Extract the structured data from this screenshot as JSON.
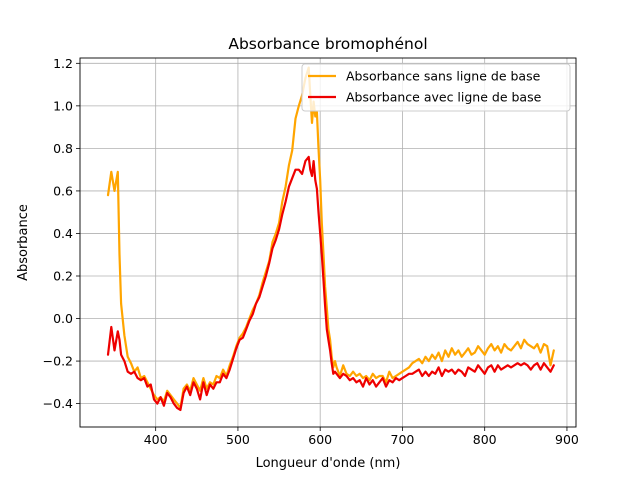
{
  "chart_data": {
    "type": "line",
    "title": "Absorbance bromophénol",
    "xlabel": "Longueur d'onde (nm)",
    "ylabel": "Absorbance",
    "xlim": [
      308,
      911
    ],
    "ylim": [
      -0.51,
      1.225
    ],
    "xticks": [
      400,
      500,
      600,
      700,
      800,
      900
    ],
    "yticks": [
      -0.4,
      -0.2,
      0.0,
      0.2,
      0.4,
      0.6,
      0.8,
      1.0,
      1.2
    ],
    "xtick_labels": [
      "400",
      "500",
      "600",
      "700",
      "800",
      "900"
    ],
    "ytick_labels": [
      "−0.4",
      "−0.2",
      "0.0",
      "0.2",
      "0.4",
      "0.6",
      "0.8",
      "1.0",
      "1.2"
    ],
    "grid": true,
    "legend_position": "top-right",
    "series": [
      {
        "name": "Absorbance sans ligne de base",
        "color": "#ffa500",
        "x": [
          342,
          346,
          350,
          354,
          356,
          358,
          362,
          366,
          370,
          374,
          378,
          382,
          386,
          390,
          394,
          398,
          402,
          406,
          410,
          414,
          418,
          422,
          426,
          430,
          434,
          438,
          442,
          446,
          450,
          454,
          458,
          462,
          466,
          470,
          474,
          478,
          482,
          486,
          490,
          494,
          498,
          502,
          506,
          510,
          514,
          518,
          522,
          526,
          530,
          534,
          538,
          542,
          546,
          550,
          554,
          558,
          562,
          566,
          570,
          574,
          578,
          582,
          586,
          588,
          590,
          592,
          594,
          596,
          598,
          600,
          602,
          604,
          606,
          608,
          610,
          612,
          614,
          616,
          618,
          620,
          624,
          628,
          632,
          636,
          640,
          644,
          648,
          652,
          656,
          660,
          664,
          668,
          672,
          676,
          680,
          684,
          688,
          692,
          696,
          700,
          704,
          708,
          712,
          716,
          720,
          724,
          728,
          732,
          736,
          740,
          744,
          748,
          752,
          756,
          760,
          764,
          768,
          772,
          776,
          780,
          784,
          788,
          792,
          796,
          800,
          804,
          808,
          812,
          816,
          820,
          824,
          828,
          832,
          836,
          840,
          844,
          848,
          852,
          856,
          860,
          864,
          868,
          872,
          876,
          880,
          884
        ],
        "values": [
          0.58,
          0.69,
          0.6,
          0.69,
          0.3,
          0.07,
          -0.08,
          -0.18,
          -0.21,
          -0.25,
          -0.23,
          -0.28,
          -0.27,
          -0.3,
          -0.33,
          -0.36,
          -0.38,
          -0.37,
          -0.39,
          -0.34,
          -0.36,
          -0.38,
          -0.4,
          -0.42,
          -0.33,
          -0.31,
          -0.34,
          -0.28,
          -0.31,
          -0.34,
          -0.28,
          -0.33,
          -0.3,
          -0.31,
          -0.27,
          -0.28,
          -0.24,
          -0.27,
          -0.22,
          -0.18,
          -0.13,
          -0.09,
          -0.07,
          -0.04,
          0.0,
          0.04,
          0.07,
          0.11,
          0.17,
          0.22,
          0.27,
          0.36,
          0.4,
          0.45,
          0.55,
          0.62,
          0.72,
          0.79,
          0.94,
          1.0,
          1.05,
          1.13,
          1.18,
          1.05,
          0.92,
          1.02,
          0.95,
          0.97,
          0.8,
          0.65,
          0.45,
          0.3,
          0.15,
          0.05,
          -0.05,
          -0.1,
          -0.18,
          -0.23,
          -0.2,
          -0.23,
          -0.27,
          -0.22,
          -0.26,
          -0.27,
          -0.25,
          -0.27,
          -0.26,
          -0.28,
          -0.27,
          -0.29,
          -0.26,
          -0.28,
          -0.27,
          -0.27,
          -0.3,
          -0.25,
          -0.28,
          -0.27,
          -0.26,
          -0.25,
          -0.24,
          -0.23,
          -0.21,
          -0.2,
          -0.19,
          -0.21,
          -0.18,
          -0.2,
          -0.17,
          -0.19,
          -0.16,
          -0.2,
          -0.15,
          -0.18,
          -0.14,
          -0.17,
          -0.15,
          -0.18,
          -0.16,
          -0.14,
          -0.17,
          -0.16,
          -0.13,
          -0.15,
          -0.17,
          -0.14,
          -0.12,
          -0.15,
          -0.13,
          -0.16,
          -0.12,
          -0.14,
          -0.15,
          -0.13,
          -0.11,
          -0.14,
          -0.1,
          -0.12,
          -0.13,
          -0.14,
          -0.12,
          -0.16,
          -0.12,
          -0.13,
          -0.22,
          -0.15
        ]
      },
      {
        "name": "Absorbance avec ligne de base",
        "color": "#ee0000",
        "x": [
          342,
          346,
          350,
          354,
          356,
          358,
          362,
          366,
          370,
          374,
          378,
          382,
          386,
          390,
          394,
          398,
          402,
          406,
          410,
          414,
          418,
          422,
          426,
          430,
          434,
          438,
          442,
          446,
          450,
          454,
          458,
          462,
          466,
          470,
          474,
          478,
          482,
          486,
          490,
          494,
          498,
          502,
          506,
          510,
          514,
          518,
          522,
          526,
          530,
          534,
          538,
          542,
          546,
          550,
          554,
          558,
          562,
          566,
          570,
          574,
          578,
          582,
          586,
          588,
          590,
          592,
          594,
          596,
          598,
          600,
          602,
          604,
          606,
          608,
          610,
          612,
          614,
          616,
          618,
          620,
          624,
          628,
          632,
          636,
          640,
          644,
          648,
          652,
          656,
          660,
          664,
          668,
          672,
          676,
          680,
          684,
          688,
          692,
          696,
          700,
          704,
          708,
          712,
          716,
          720,
          724,
          728,
          732,
          736,
          740,
          744,
          748,
          752,
          756,
          760,
          764,
          768,
          772,
          776,
          780,
          784,
          788,
          792,
          796,
          800,
          804,
          808,
          812,
          816,
          820,
          824,
          828,
          832,
          836,
          840,
          844,
          848,
          852,
          856,
          860,
          864,
          868,
          872,
          876,
          880,
          884
        ],
        "values": [
          -0.17,
          -0.04,
          -0.15,
          -0.06,
          -0.1,
          -0.17,
          -0.2,
          -0.25,
          -0.26,
          -0.25,
          -0.28,
          -0.29,
          -0.28,
          -0.32,
          -0.31,
          -0.38,
          -0.4,
          -0.37,
          -0.41,
          -0.35,
          -0.37,
          -0.4,
          -0.42,
          -0.43,
          -0.35,
          -0.32,
          -0.36,
          -0.3,
          -0.33,
          -0.38,
          -0.3,
          -0.36,
          -0.31,
          -0.33,
          -0.3,
          -0.3,
          -0.26,
          -0.28,
          -0.24,
          -0.19,
          -0.14,
          -0.1,
          -0.09,
          -0.05,
          -0.01,
          0.02,
          0.07,
          0.1,
          0.15,
          0.2,
          0.26,
          0.33,
          0.37,
          0.42,
          0.49,
          0.55,
          0.62,
          0.66,
          0.7,
          0.7,
          0.68,
          0.74,
          0.76,
          0.7,
          0.67,
          0.74,
          0.65,
          0.61,
          0.5,
          0.4,
          0.3,
          0.18,
          0.06,
          -0.05,
          -0.1,
          -0.15,
          -0.21,
          -0.26,
          -0.25,
          -0.26,
          -0.28,
          -0.26,
          -0.27,
          -0.29,
          -0.28,
          -0.3,
          -0.29,
          -0.32,
          -0.28,
          -0.31,
          -0.29,
          -0.32,
          -0.3,
          -0.28,
          -0.32,
          -0.29,
          -0.3,
          -0.28,
          -0.29,
          -0.28,
          -0.27,
          -0.26,
          -0.26,
          -0.25,
          -0.24,
          -0.27,
          -0.25,
          -0.27,
          -0.25,
          -0.26,
          -0.23,
          -0.27,
          -0.24,
          -0.25,
          -0.24,
          -0.26,
          -0.24,
          -0.25,
          -0.27,
          -0.23,
          -0.24,
          -0.25,
          -0.22,
          -0.24,
          -0.26,
          -0.23,
          -0.22,
          -0.25,
          -0.22,
          -0.24,
          -0.23,
          -0.22,
          -0.23,
          -0.22,
          -0.21,
          -0.22,
          -0.21,
          -0.22,
          -0.24,
          -0.22,
          -0.21,
          -0.24,
          -0.21,
          -0.23,
          -0.25,
          -0.22
        ]
      }
    ]
  }
}
